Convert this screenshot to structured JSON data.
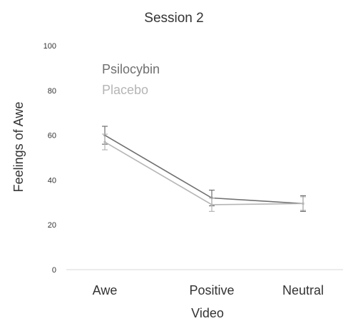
{
  "chart_data": {
    "type": "line",
    "title": "Session 2",
    "xlabel": "Video",
    "ylabel": "Feelings of Awe",
    "categories": [
      "Awe",
      "Positive",
      "Neutral"
    ],
    "ylim": [
      0,
      100
    ],
    "yticks": [
      "0",
      "20",
      "40",
      "60",
      "80",
      "100"
    ],
    "yticks_values": [
      0,
      20,
      40,
      60,
      80,
      100
    ],
    "grid": false,
    "legend_position": "top-left",
    "series": [
      {
        "name": "Psilocybin",
        "color": "#6f6f6f",
        "values": [
          60,
          32,
          29.5
        ],
        "error_bars": [
          4,
          3.5,
          3.5
        ]
      },
      {
        "name": "Placebo",
        "color": "#b5b5b5",
        "values": [
          57,
          29,
          29.5
        ],
        "error_bars": [
          3.5,
          3,
          3
        ]
      }
    ]
  }
}
